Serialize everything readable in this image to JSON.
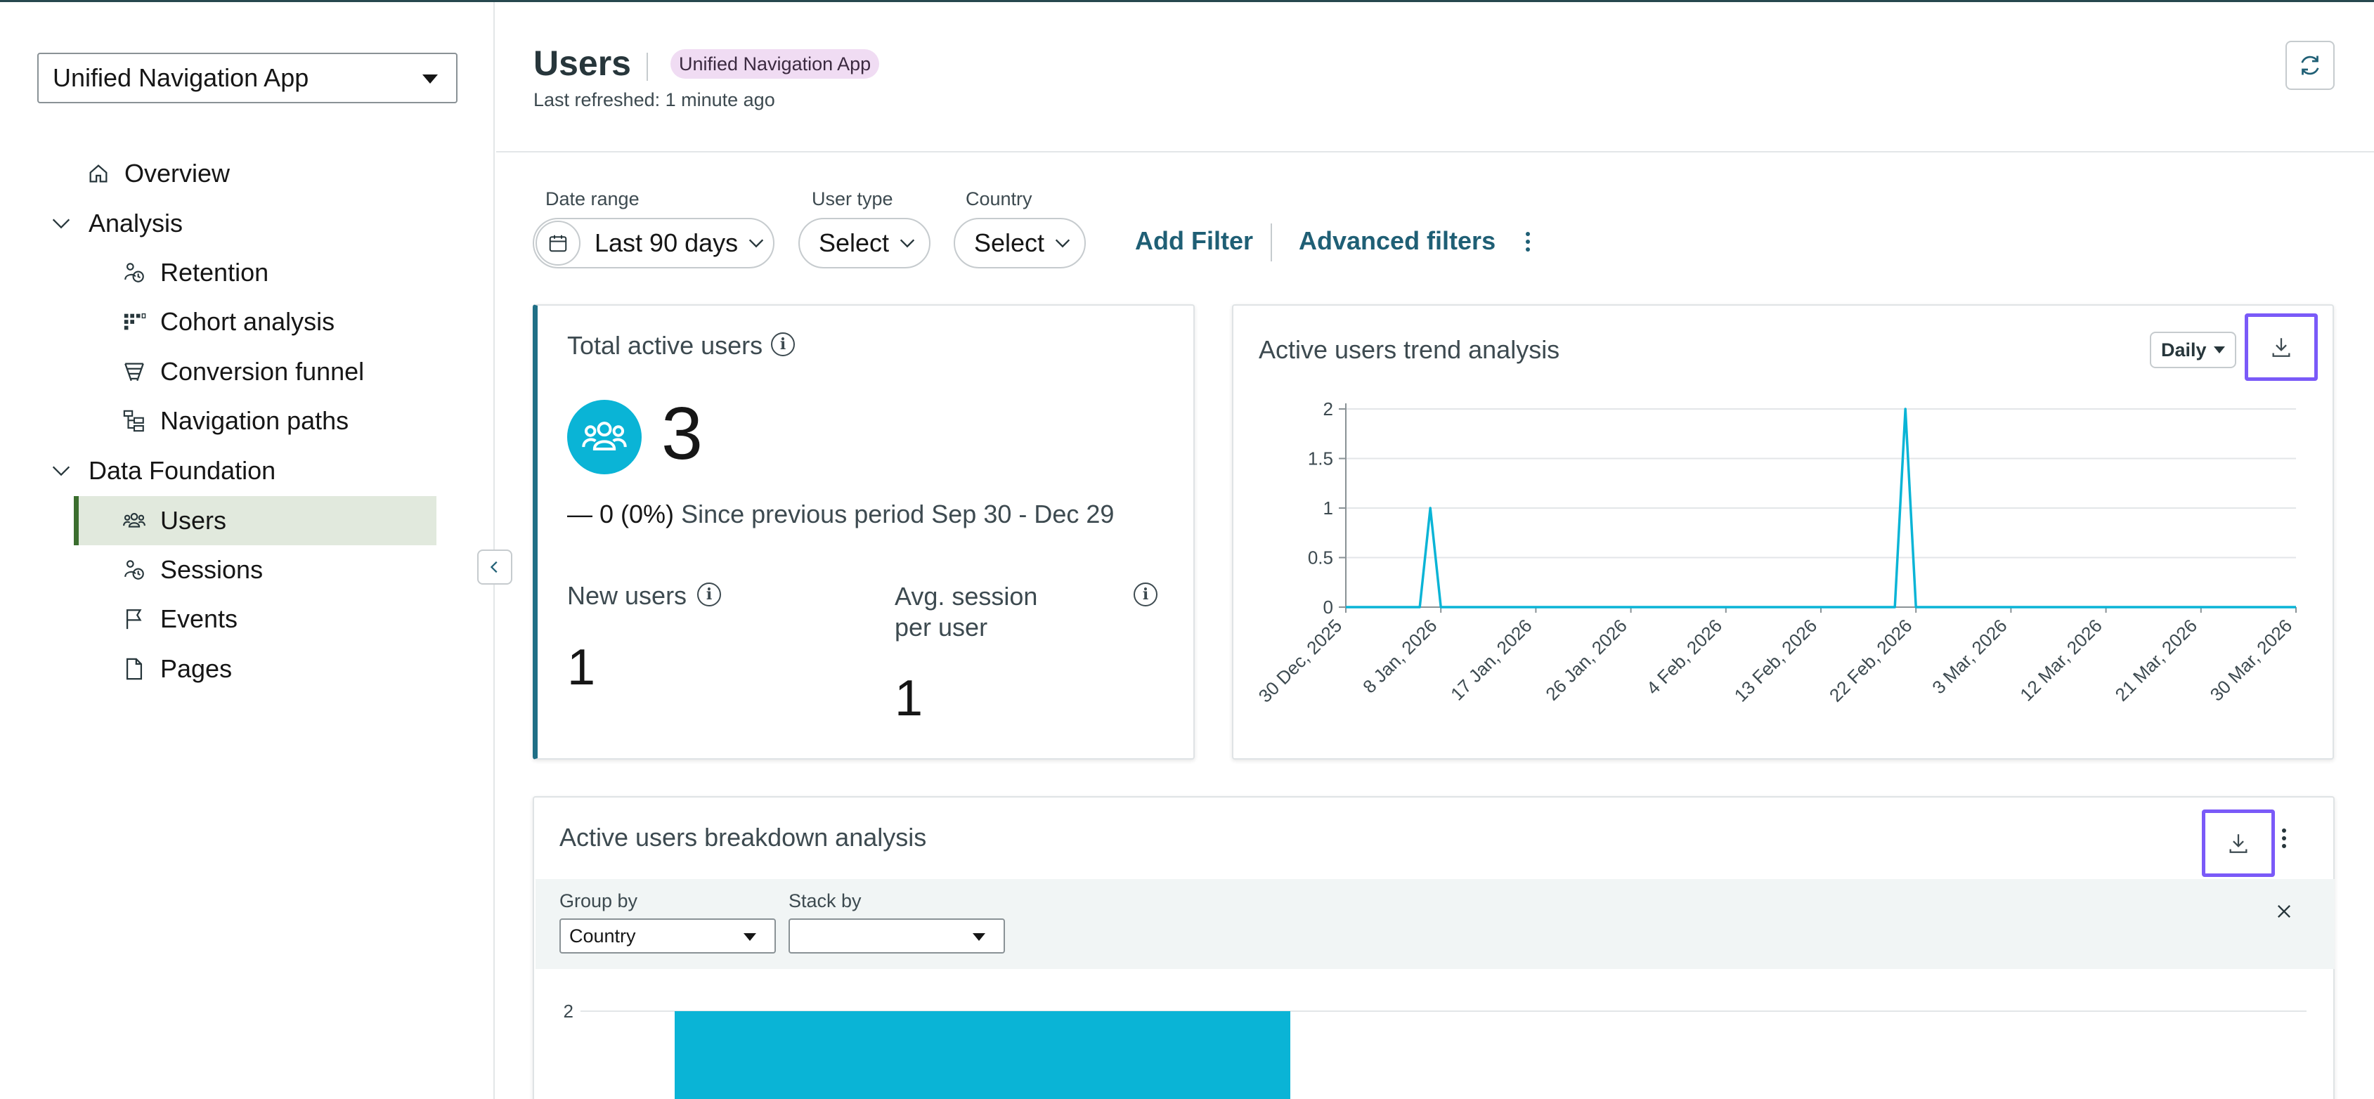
{
  "app_selector": {
    "value": "Unified Navigation App"
  },
  "sidebar": {
    "overview": {
      "label": "Overview"
    },
    "analysis": {
      "label": "Analysis",
      "items": [
        {
          "label": "Retention"
        },
        {
          "label": "Cohort analysis"
        },
        {
          "label": "Conversion funnel"
        },
        {
          "label": "Navigation paths"
        }
      ]
    },
    "data_foundation": {
      "label": "Data Foundation",
      "items": [
        {
          "label": "Users"
        },
        {
          "label": "Sessions"
        },
        {
          "label": "Events"
        },
        {
          "label": "Pages"
        }
      ]
    },
    "active_item": "Users"
  },
  "header": {
    "title": "Users",
    "badge": "Unified Navigation App",
    "last_refreshed": "Last refreshed: 1 minute ago"
  },
  "filters": {
    "date_range": {
      "label": "Date range",
      "value": "Last 90 days"
    },
    "user_type": {
      "label": "User type",
      "value": "Select"
    },
    "country": {
      "label": "Country",
      "value": "Select"
    },
    "add_filter": "Add Filter",
    "advanced_filters": "Advanced filters"
  },
  "total_active_users": {
    "title": "Total active users",
    "value": "3",
    "delta_value": "— 0 (0%)",
    "delta_text": "Since previous period Sep 30 - Dec 29",
    "new_users_label": "New users",
    "new_users_value": "1",
    "avg_session_label": "Avg. session per user",
    "avg_session_value": "1"
  },
  "trend_card": {
    "title": "Active users trend analysis",
    "granularity": "Daily"
  },
  "breakdown_card": {
    "title": "Active users breakdown analysis",
    "group_by_label": "Group by",
    "group_by_value": "Country",
    "stack_by_label": "Stack by",
    "stack_by_value": ""
  },
  "colors": {
    "accent": "#0ab4d6",
    "link": "#1f5f75",
    "active_nav_bg": "#e1e9dd",
    "active_nav_border": "#3b6e2e",
    "focus_outline": "#7a5af8",
    "badge_bg": "#f0dcf3"
  },
  "chart_data": [
    {
      "type": "line",
      "title": "Active users trend analysis",
      "x_tick_labels": [
        "30 Dec, 2025",
        "8 Jan, 2026",
        "17 Jan, 2026",
        "26 Jan, 2026",
        "4 Feb, 2026",
        "13 Feb, 2026",
        "22 Feb, 2026",
        "3 Mar, 2026",
        "12 Mar, 2026",
        "21 Mar, 2026",
        "30 Mar, 2026"
      ],
      "y_ticks": [
        0,
        0.5,
        1,
        1.5,
        2
      ],
      "ylim": [
        0,
        2
      ],
      "xlim": [
        "2025-12-30",
        "2026-03-30"
      ],
      "grid": true,
      "series": [
        {
          "color": "#0ab4d6",
          "points": [
            [
              "2025-12-30",
              0
            ],
            [
              "2026-01-06",
              0
            ],
            [
              "2026-01-07",
              1
            ],
            [
              "2026-01-08",
              0
            ],
            [
              "2026-02-20",
              0
            ],
            [
              "2026-02-21",
              2
            ],
            [
              "2026-02-22",
              0
            ],
            [
              "2026-03-30",
              0
            ]
          ]
        }
      ]
    },
    {
      "type": "bar",
      "title": "Active users breakdown analysis",
      "y_ticks": [
        2
      ],
      "series": [
        {
          "color": "#0ab4d6",
          "values": [
            2
          ]
        }
      ]
    }
  ]
}
